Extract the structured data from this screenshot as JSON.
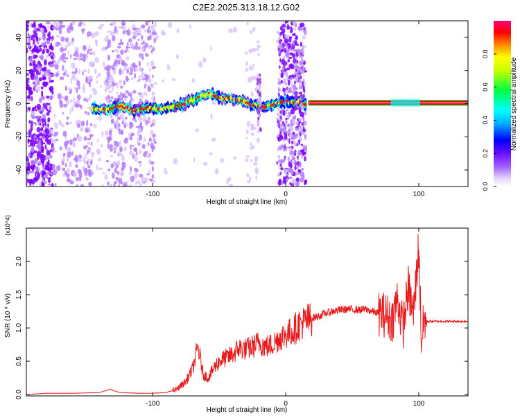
{
  "title": "C2E2.2025.313.18.12.G02",
  "chart_data": [
    {
      "type": "heatmap",
      "title": "C2E2.2025.313.18.12.G02",
      "xlabel": "Height of straight line (km)",
      "ylabel": "Frequency (Hz)",
      "xlim": [
        -195,
        137
      ],
      "ylim": [
        -50,
        50
      ],
      "xticks": [
        -100,
        0,
        100
      ],
      "xtick_labels": [
        "-100",
        "0",
        "100"
      ],
      "yticks": [
        -40,
        -20,
        0,
        20,
        40
      ],
      "ytick_labels": [
        "-40",
        "-20",
        "0",
        "20",
        "40"
      ],
      "colorbar": {
        "label": "Normalized spectral amplitude",
        "range": [
          0,
          1
        ],
        "ticks": [
          0.0,
          0.2,
          0.4,
          0.6,
          0.8
        ],
        "tick_labels": [
          "0.0",
          "0.2",
          "0.4",
          "0.6",
          "0.8"
        ],
        "colors": [
          "#ffffff",
          "#d8b8ff",
          "#8a2be2",
          "#0000ff",
          "#00ffff",
          "#00ff00",
          "#ffff00",
          "#ff0000",
          "#ff0080"
        ]
      },
      "ridge": {
        "x": [
          -145,
          -135,
          -125,
          -115,
          -105,
          -95,
          -85,
          -75,
          -65,
          -58,
          -50,
          -42,
          -35,
          -28,
          -22,
          -15,
          -8,
          0,
          8,
          15,
          20,
          40,
          60,
          80,
          90,
          100,
          137
        ],
        "y": [
          -3,
          -4,
          -1,
          -4,
          -3,
          -3,
          -2,
          0,
          4,
          6,
          4,
          3,
          2,
          0,
          -1,
          -2,
          0,
          1,
          1,
          0,
          0.5,
          0.5,
          0.5,
          0.5,
          0.5,
          0.5,
          0.5
        ]
      }
    },
    {
      "type": "line",
      "xlabel": "Height of straight line (km)",
      "ylabel": "SNR (10 * v/v)",
      "y_multiplier": "(x10^4)",
      "xlim": [
        -195,
        137
      ],
      "ylim": [
        -0.02,
        2.5
      ],
      "xticks": [
        -100,
        0,
        100
      ],
      "xtick_labels": [
        "-100",
        "0",
        "100"
      ],
      "yticks": [
        0.0,
        0.5,
        1.0,
        1.5,
        2.0
      ],
      "ytick_labels": [
        "0.0",
        "0.5",
        "1.0",
        "1.5",
        "2.0"
      ],
      "series": [
        {
          "name": "SNR",
          "color": "#e8191b",
          "x": [
            -195,
            -180,
            -160,
            -140,
            -132,
            -125,
            -110,
            -100,
            -90,
            -82,
            -75,
            -70,
            -66,
            -62,
            -58,
            -54,
            -50,
            -45,
            -40,
            -35,
            -30,
            -25,
            -20,
            -15,
            -10,
            -5,
            0,
            5,
            10,
            15,
            20,
            25,
            30,
            35,
            40,
            45,
            50,
            55,
            60,
            65,
            70,
            75,
            80,
            84,
            88,
            92,
            96,
            100,
            102,
            104,
            106,
            110,
            120,
            130,
            137
          ],
          "y": [
            0.0,
            0.02,
            0.02,
            0.03,
            0.08,
            0.03,
            0.02,
            0.02,
            0.03,
            0.08,
            0.2,
            0.38,
            0.72,
            0.3,
            0.25,
            0.4,
            0.5,
            0.55,
            0.6,
            0.7,
            0.68,
            0.72,
            0.78,
            0.72,
            0.75,
            0.85,
            0.9,
            0.95,
            1.05,
            1.1,
            1.15,
            1.18,
            1.22,
            1.25,
            1.27,
            1.28,
            1.28,
            1.27,
            1.28,
            1.25,
            1.22,
            1.2,
            1.12,
            1.45,
            1.0,
            1.6,
            1.2,
            2.25,
            0.8,
            1.12,
            1.1,
            1.1,
            1.1,
            1.1,
            1.1
          ]
        }
      ]
    }
  ]
}
